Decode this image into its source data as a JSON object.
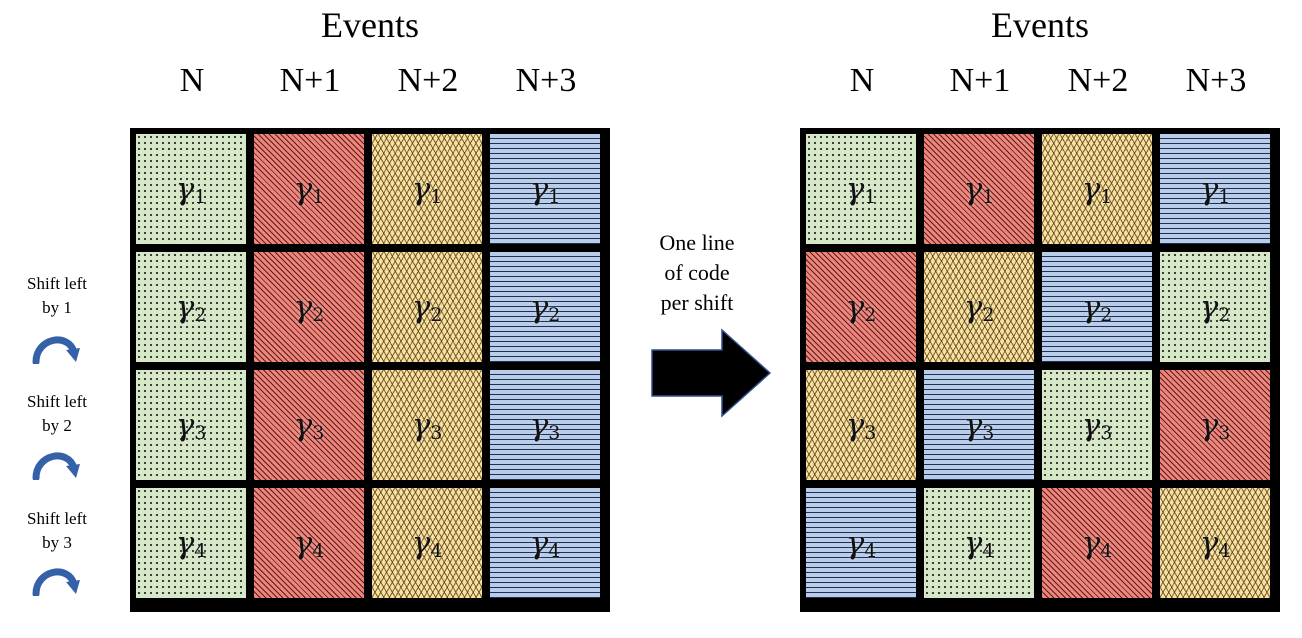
{
  "left_panel": {
    "title": "Events",
    "columns": [
      "N",
      "N+1",
      "N+2",
      "N+3"
    ],
    "rows": [
      [
        {
          "sym": "γ",
          "sub": "1",
          "pattern": "green"
        },
        {
          "sym": "γ",
          "sub": "1",
          "pattern": "red"
        },
        {
          "sym": "γ",
          "sub": "1",
          "pattern": "yellow"
        },
        {
          "sym": "γ",
          "sub": "1",
          "pattern": "blue"
        }
      ],
      [
        {
          "sym": "γ",
          "sub": "2",
          "pattern": "green"
        },
        {
          "sym": "γ",
          "sub": "2",
          "pattern": "red"
        },
        {
          "sym": "γ",
          "sub": "2",
          "pattern": "yellow"
        },
        {
          "sym": "γ",
          "sub": "2",
          "pattern": "blue"
        }
      ],
      [
        {
          "sym": "γ",
          "sub": "3",
          "pattern": "green"
        },
        {
          "sym": "γ",
          "sub": "3",
          "pattern": "red"
        },
        {
          "sym": "γ",
          "sub": "3",
          "pattern": "yellow"
        },
        {
          "sym": "γ",
          "sub": "3",
          "pattern": "blue"
        }
      ],
      [
        {
          "sym": "γ",
          "sub": "4",
          "pattern": "green"
        },
        {
          "sym": "γ",
          "sub": "4",
          "pattern": "red"
        },
        {
          "sym": "γ",
          "sub": "4",
          "pattern": "yellow"
        },
        {
          "sym": "γ",
          "sub": "4",
          "pattern": "blue"
        }
      ]
    ]
  },
  "right_panel": {
    "title": "Events",
    "columns": [
      "N",
      "N+1",
      "N+2",
      "N+3"
    ],
    "rows": [
      [
        {
          "sym": "γ",
          "sub": "1",
          "pattern": "green"
        },
        {
          "sym": "γ",
          "sub": "1",
          "pattern": "red"
        },
        {
          "sym": "γ",
          "sub": "1",
          "pattern": "yellow"
        },
        {
          "sym": "γ",
          "sub": "1",
          "pattern": "blue"
        }
      ],
      [
        {
          "sym": "γ",
          "sub": "2",
          "pattern": "red"
        },
        {
          "sym": "γ",
          "sub": "2",
          "pattern": "yellow"
        },
        {
          "sym": "γ",
          "sub": "2",
          "pattern": "blue"
        },
        {
          "sym": "γ",
          "sub": "2",
          "pattern": "green"
        }
      ],
      [
        {
          "sym": "γ",
          "sub": "3",
          "pattern": "yellow"
        },
        {
          "sym": "γ",
          "sub": "3",
          "pattern": "blue"
        },
        {
          "sym": "γ",
          "sub": "3",
          "pattern": "green"
        },
        {
          "sym": "γ",
          "sub": "3",
          "pattern": "red"
        }
      ],
      [
        {
          "sym": "γ",
          "sub": "4",
          "pattern": "blue"
        },
        {
          "sym": "γ",
          "sub": "4",
          "pattern": "green"
        },
        {
          "sym": "γ",
          "sub": "4",
          "pattern": "red"
        },
        {
          "sym": "γ",
          "sub": "4",
          "pattern": "yellow"
        }
      ]
    ]
  },
  "shift_labels": [
    {
      "line1": "Shift left",
      "line2": "by 1"
    },
    {
      "line1": "Shift left",
      "line2": "by 2"
    },
    {
      "line1": "Shift left",
      "line2": "by 3"
    }
  ],
  "middle_note": {
    "line1": "One line",
    "line2": "of code",
    "line3": "per shift"
  },
  "icons": {
    "shift": "curved-arrow-icon",
    "transform": "right-arrow-icon"
  },
  "colors": {
    "green": "#d6e8c8",
    "red": "#ee857d",
    "yellow": "#fbdf9c",
    "blue": "#b9cde9",
    "curved_arrow": "#3461a8",
    "grid_border": "#000000"
  }
}
